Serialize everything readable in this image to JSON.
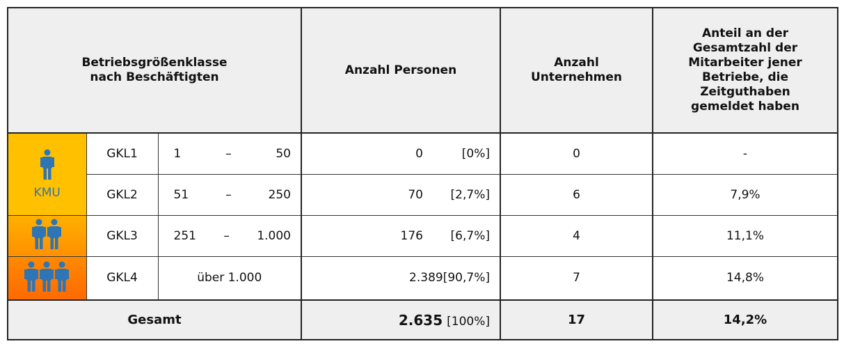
{
  "header": {
    "size_class": [
      "Betriebsgrößenklasse",
      "nach Beschäftigten"
    ],
    "persons": [
      "Anzahl Personen"
    ],
    "companies": [
      "Anzahl",
      "Unternehmen"
    ],
    "share": [
      "Anteil an der",
      "Gesamtzahl der",
      "Mitarbeiter jener",
      "Betriebe, die",
      "Zeitguthaben",
      "gemeldet haben"
    ]
  },
  "kmu": "KMU",
  "rows": [
    {
      "class": "GKL1",
      "from": "1",
      "dash": "–",
      "to": "50",
      "persons": "0",
      "persons_share": "[0%]",
      "companies": "0",
      "share": "-"
    },
    {
      "class": "GKL2",
      "from": "51",
      "dash": "–",
      "to": "250",
      "persons": "70",
      "persons_share": "[2,7%]",
      "companies": "6",
      "share": "7,9%"
    },
    {
      "class": "GKL3",
      "from": "251",
      "dash": "–",
      "to": "1.000",
      "persons": "176",
      "persons_share": "[6,7%]",
      "companies": "4",
      "share": "11,1%"
    },
    {
      "class": "GKL4",
      "range": "über 1.000",
      "persons": "2.389",
      "persons_share": "[90,7%]",
      "companies": "7",
      "share": "14,8%"
    }
  ],
  "total": {
    "label": "Gesamt",
    "persons": "2.635",
    "persons_share": "[100%]",
    "companies": "17",
    "share": "14,2%"
  }
}
